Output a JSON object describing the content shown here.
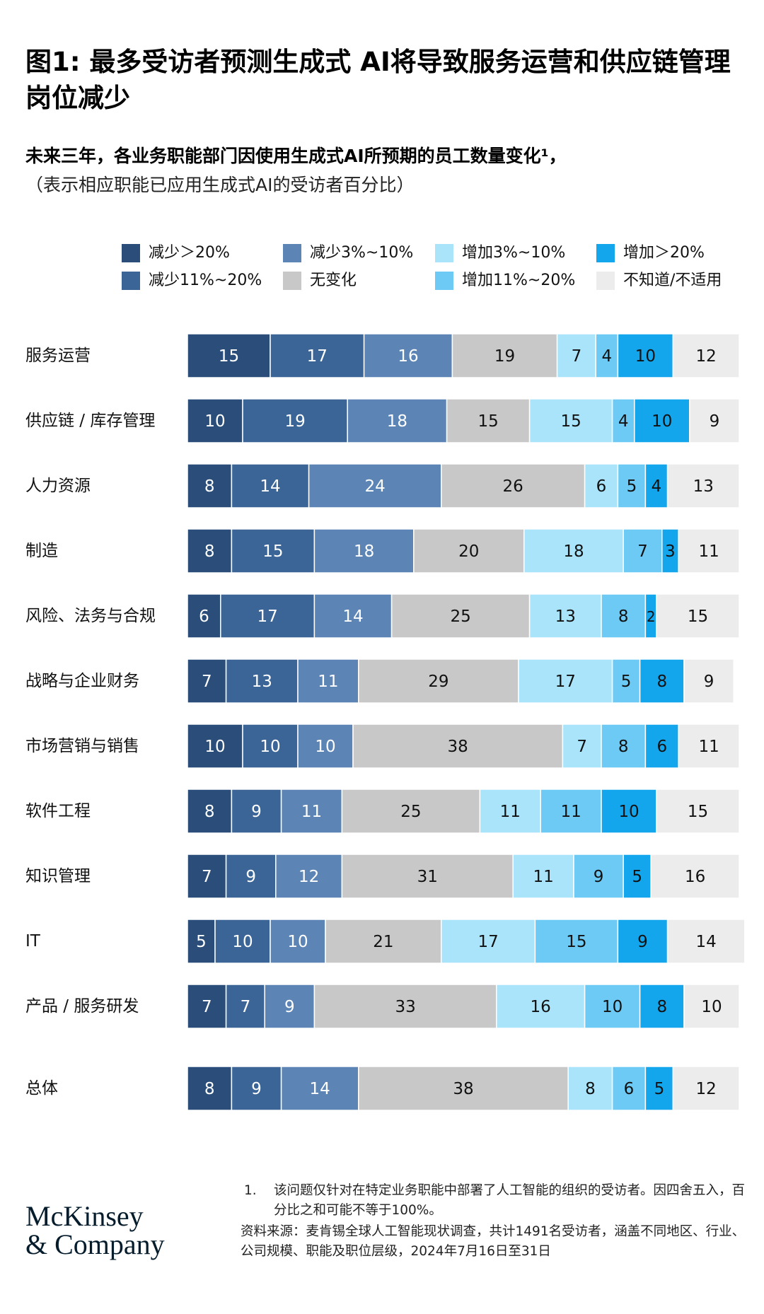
{
  "title": "图1: 最多受访者预测生成式 AI将导致服务运营和供应链管理岗位减少",
  "subtitle": "未来三年，各业务职能部门因使用生成式AI所预期的员工数量变化¹，",
  "subnote": "（表示相应职能已应用生成式AI的受访者百分比）",
  "legend": [
    {
      "label": "减少＞20%",
      "color": "#2a4e79"
    },
    {
      "label": "减少11%~20%",
      "color": "#3a6596"
    },
    {
      "label": "减少3%~10%",
      "color": "#5c85b5"
    },
    {
      "label": "无变化",
      "color": "#c8c8c8"
    },
    {
      "label": "增加3%~10%",
      "color": "#aae4fb"
    },
    {
      "label": "增加11%~20%",
      "color": "#6dcaf4"
    },
    {
      "label": "增加＞20%",
      "color": "#14a6ec"
    },
    {
      "label": "不知道/不适用",
      "color": "#ececec"
    }
  ],
  "chart_data": {
    "type": "bar",
    "orientation": "horizontal",
    "stacked": true,
    "unit": "%",
    "categories": [
      "服务运营",
      "供应链 / 库存管理",
      "人力资源",
      "制造",
      "风险、法务与合规",
      "战略与企业财务",
      "市场营销与销售",
      "软件工程",
      "知识管理",
      "IT",
      "产品 / 服务研发",
      "总体"
    ],
    "series": [
      {
        "name": "减少＞20%",
        "values": [
          15,
          10,
          8,
          8,
          6,
          7,
          10,
          8,
          7,
          5,
          7,
          8
        ]
      },
      {
        "name": "减少11%~20%",
        "values": [
          17,
          19,
          14,
          15,
          17,
          13,
          10,
          9,
          9,
          10,
          7,
          9
        ]
      },
      {
        "name": "减少3%~10%",
        "values": [
          16,
          18,
          24,
          18,
          14,
          11,
          10,
          11,
          12,
          10,
          9,
          14
        ]
      },
      {
        "name": "无变化",
        "values": [
          19,
          15,
          26,
          20,
          25,
          29,
          38,
          25,
          31,
          21,
          33,
          38
        ]
      },
      {
        "name": "增加3%~10%",
        "values": [
          7,
          15,
          6,
          18,
          13,
          17,
          7,
          11,
          11,
          17,
          16,
          8
        ]
      },
      {
        "name": "增加11%~20%",
        "values": [
          4,
          4,
          5,
          7,
          8,
          5,
          8,
          11,
          9,
          15,
          10,
          6
        ]
      },
      {
        "name": "增加＞20%",
        "values": [
          10,
          10,
          4,
          3,
          2,
          8,
          6,
          10,
          5,
          9,
          8,
          5
        ]
      },
      {
        "name": "不知道/不适用",
        "values": [
          12,
          9,
          13,
          11,
          15,
          9,
          11,
          15,
          16,
          14,
          10,
          12
        ]
      }
    ]
  },
  "footnote": {
    "number": "1.",
    "text": "该问题仅针对在特定业务职能中部署了人工智能的组织的受访者。因四舍五入，百分比之和可能不等于100%。"
  },
  "source": "资料来源：麦肯锡全球人工智能现状调查，共计1491名受访者，涵盖不同地区、行业、公司规模、职能及职位层级，2024年7月16日至31日",
  "logo": {
    "line1": "McKinsey",
    "line2": "& Company"
  }
}
